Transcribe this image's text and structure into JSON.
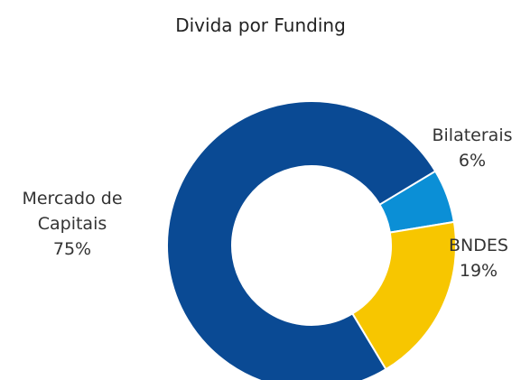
{
  "chart_data": {
    "type": "pie",
    "title": "Divida por Funding",
    "slices": [
      {
        "name": "Mercado de Capitais",
        "label_lines": [
          "Mercado de",
          "Capitais"
        ],
        "value": 75,
        "value_label": "75%",
        "color": "#0a4a94"
      },
      {
        "name": "Bilaterais",
        "label_lines": [
          "Bilaterais"
        ],
        "value": 6,
        "value_label": "6%",
        "color": "#0b8fd6"
      },
      {
        "name": "BNDES",
        "label_lines": [
          "BNDES"
        ],
        "value": 19,
        "value_label": "19%",
        "color": "#f7c600"
      }
    ],
    "donut": true
  }
}
